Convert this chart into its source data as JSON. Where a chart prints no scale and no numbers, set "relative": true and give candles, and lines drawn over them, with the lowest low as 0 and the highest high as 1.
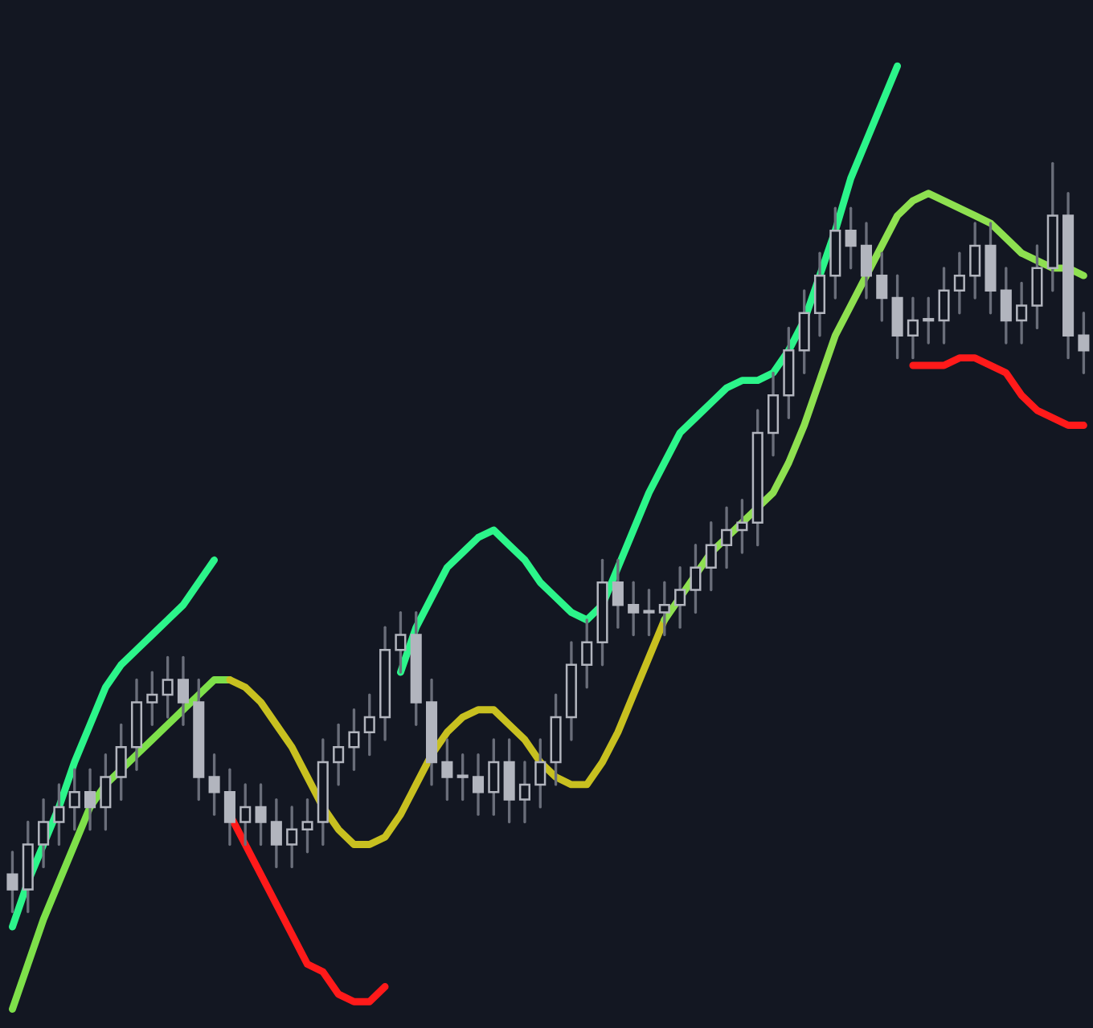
{
  "chart_data": {
    "type": "candlestick",
    "relative": true,
    "categories": [
      null,
      null,
      null,
      null,
      null,
      null,
      null,
      null,
      null,
      null,
      null,
      null,
      null,
      null,
      null,
      null,
      null,
      null,
      null,
      null,
      null,
      null,
      null,
      null,
      null,
      null,
      null,
      null,
      null,
      null,
      null,
      null,
      null,
      null,
      null,
      null,
      null,
      null,
      null,
      null,
      null,
      null,
      null,
      null,
      null,
      null,
      null,
      null,
      null,
      null,
      null,
      null,
      null,
      null,
      null,
      null,
      null,
      null,
      null,
      null,
      null,
      null,
      null,
      null,
      null,
      null,
      null,
      null,
      null,
      null
    ],
    "ohlc": [
      [
        0.05,
        0.08,
        0.0,
        0.03
      ],
      [
        0.03,
        0.12,
        0.0,
        0.09
      ],
      [
        0.09,
        0.15,
        0.06,
        0.12
      ],
      [
        0.12,
        0.17,
        0.09,
        0.14
      ],
      [
        0.14,
        0.19,
        0.11,
        0.16
      ],
      [
        0.16,
        0.19,
        0.11,
        0.14
      ],
      [
        0.14,
        0.21,
        0.11,
        0.18
      ],
      [
        0.18,
        0.25,
        0.15,
        0.22
      ],
      [
        0.22,
        0.31,
        0.19,
        0.28
      ],
      [
        0.28,
        0.32,
        0.25,
        0.29
      ],
      [
        0.29,
        0.34,
        0.26,
        0.31
      ],
      [
        0.31,
        0.34,
        0.25,
        0.28
      ],
      [
        0.28,
        0.31,
        0.15,
        0.18
      ],
      [
        0.18,
        0.21,
        0.13,
        0.16
      ],
      [
        0.16,
        0.19,
        0.09,
        0.12
      ],
      [
        0.12,
        0.17,
        0.09,
        0.14
      ],
      [
        0.14,
        0.17,
        0.09,
        0.12
      ],
      [
        0.12,
        0.15,
        0.06,
        0.09
      ],
      [
        0.09,
        0.14,
        0.06,
        0.11
      ],
      [
        0.11,
        0.15,
        0.08,
        0.12
      ],
      [
        0.12,
        0.23,
        0.09,
        0.2
      ],
      [
        0.2,
        0.25,
        0.17,
        0.22
      ],
      [
        0.22,
        0.27,
        0.19,
        0.24
      ],
      [
        0.24,
        0.29,
        0.21,
        0.26
      ],
      [
        0.26,
        0.38,
        0.23,
        0.35
      ],
      [
        0.35,
        0.4,
        0.32,
        0.37
      ],
      [
        0.37,
        0.4,
        0.25,
        0.28
      ],
      [
        0.28,
        0.31,
        0.17,
        0.2
      ],
      [
        0.2,
        0.23,
        0.15,
        0.18
      ],
      [
        0.18,
        0.21,
        0.15,
        0.18
      ],
      [
        0.18,
        0.21,
        0.13,
        0.16
      ],
      [
        0.16,
        0.23,
        0.13,
        0.2
      ],
      [
        0.2,
        0.23,
        0.12,
        0.15
      ],
      [
        0.15,
        0.2,
        0.12,
        0.17
      ],
      [
        0.17,
        0.23,
        0.14,
        0.2
      ],
      [
        0.2,
        0.29,
        0.17,
        0.26
      ],
      [
        0.26,
        0.36,
        0.23,
        0.33
      ],
      [
        0.33,
        0.39,
        0.3,
        0.36
      ],
      [
        0.36,
        0.47,
        0.33,
        0.44
      ],
      [
        0.44,
        0.47,
        0.38,
        0.41
      ],
      [
        0.41,
        0.44,
        0.37,
        0.4
      ],
      [
        0.4,
        0.43,
        0.37,
        0.4
      ],
      [
        0.4,
        0.44,
        0.37,
        0.41
      ],
      [
        0.41,
        0.46,
        0.38,
        0.43
      ],
      [
        0.43,
        0.49,
        0.4,
        0.46
      ],
      [
        0.46,
        0.52,
        0.43,
        0.49
      ],
      [
        0.49,
        0.54,
        0.46,
        0.51
      ],
      [
        0.51,
        0.55,
        0.48,
        0.52
      ],
      [
        0.52,
        0.67,
        0.49,
        0.64
      ],
      [
        0.64,
        0.72,
        0.61,
        0.69
      ],
      [
        0.69,
        0.78,
        0.66,
        0.75
      ],
      [
        0.75,
        0.83,
        0.72,
        0.8
      ],
      [
        0.8,
        0.88,
        0.77,
        0.85
      ],
      [
        0.85,
        0.94,
        0.82,
        0.91
      ],
      [
        0.91,
        0.94,
        0.86,
        0.89
      ],
      [
        0.89,
        0.92,
        0.82,
        0.85
      ],
      [
        0.85,
        0.88,
        0.79,
        0.82
      ],
      [
        0.82,
        0.85,
        0.74,
        0.77
      ],
      [
        0.77,
        0.82,
        0.74,
        0.79
      ],
      [
        0.79,
        0.82,
        0.76,
        0.79
      ],
      [
        0.79,
        0.86,
        0.76,
        0.83
      ],
      [
        0.83,
        0.88,
        0.8,
        0.85
      ],
      [
        0.85,
        0.92,
        0.82,
        0.89
      ],
      [
        0.89,
        0.92,
        0.8,
        0.83
      ],
      [
        0.83,
        0.86,
        0.76,
        0.79
      ],
      [
        0.79,
        0.84,
        0.76,
        0.81
      ],
      [
        0.81,
        0.89,
        0.78,
        0.86
      ],
      [
        0.86,
        1.0,
        0.83,
        0.93
      ],
      [
        0.93,
        0.96,
        0.74,
        0.77
      ],
      [
        0.77,
        0.8,
        0.72,
        0.75
      ]
    ],
    "series": [
      {
        "type": "line",
        "color": "#2cf58a",
        "values": [
          -0.02,
          0.04,
          0.09,
          0.14,
          0.2,
          0.25,
          0.3,
          0.33,
          0.35,
          0.37,
          0.39,
          0.41,
          0.44,
          0.47,
          null,
          null,
          null,
          null,
          null,
          null,
          null,
          null,
          null,
          null,
          null,
          null,
          null,
          null,
          null,
          null,
          null,
          null,
          null,
          null,
          null,
          null,
          null,
          null,
          null,
          null,
          null,
          null,
          null,
          null,
          null,
          null,
          null,
          null,
          null,
          null,
          null,
          null,
          null,
          null,
          null,
          null,
          null,
          null,
          null,
          null,
          null,
          null,
          null,
          null,
          null,
          null,
          null,
          null,
          null,
          null
        ]
      },
      {
        "type": "line",
        "color": "#2cf58a",
        "values": [
          null,
          null,
          null,
          null,
          null,
          null,
          null,
          null,
          null,
          null,
          null,
          null,
          null,
          null,
          null,
          null,
          null,
          null,
          null,
          null,
          null,
          null,
          null,
          null,
          null,
          0.32,
          0.38,
          0.42,
          0.46,
          0.48,
          0.5,
          0.51,
          0.49,
          0.47,
          0.44,
          0.42,
          0.4,
          0.39,
          0.41,
          0.46,
          0.51,
          0.56,
          0.6,
          0.64,
          0.66,
          0.68,
          0.7,
          0.71,
          0.71,
          0.72,
          0.75,
          0.79,
          0.85,
          0.91,
          0.98,
          1.03,
          1.08,
          1.13,
          null,
          null,
          null,
          null,
          null,
          null,
          null,
          null,
          null,
          null,
          null,
          null
        ]
      },
      {
        "type": "line",
        "color": "#7ee04a",
        "values": [
          -0.13,
          -0.07,
          -0.01,
          0.04,
          0.09,
          0.14,
          0.17,
          0.19,
          0.21,
          0.23,
          0.25,
          0.27,
          0.29,
          0.31,
          0.31,
          null,
          null,
          null,
          null,
          null,
          null,
          null,
          null,
          null,
          null,
          null,
          null,
          null,
          null,
          null,
          null,
          null,
          null,
          null,
          null,
          null,
          null,
          null,
          null,
          null,
          null,
          null,
          null,
          null,
          null,
          null,
          null,
          null,
          null,
          null,
          null,
          null,
          null,
          null,
          null,
          null,
          null,
          null,
          null,
          null,
          null,
          null,
          null,
          null,
          null,
          null,
          null,
          null,
          null,
          null
        ]
      },
      {
        "type": "line",
        "color": "#c8c020",
        "values": [
          null,
          null,
          null,
          null,
          null,
          null,
          null,
          null,
          null,
          null,
          null,
          null,
          null,
          null,
          0.31,
          0.3,
          0.28,
          0.25,
          0.22,
          0.18,
          0.14,
          0.11,
          0.09,
          0.09,
          0.1,
          0.13,
          0.17,
          0.21,
          0.24,
          0.26,
          0.27,
          0.27,
          0.25,
          0.23,
          0.2,
          0.18,
          0.17,
          0.17,
          0.2,
          0.24,
          0.29,
          0.34,
          0.39,
          null,
          null,
          null,
          null,
          null,
          null,
          null,
          null,
          null,
          null,
          null,
          null,
          null,
          null,
          null,
          null,
          null,
          null,
          null,
          null,
          null,
          null,
          null,
          null,
          null,
          null,
          null
        ]
      },
      {
        "type": "line",
        "color": "#8ee050",
        "values": [
          null,
          null,
          null,
          null,
          null,
          null,
          null,
          null,
          null,
          null,
          null,
          null,
          null,
          null,
          null,
          null,
          null,
          null,
          null,
          null,
          null,
          null,
          null,
          null,
          null,
          null,
          null,
          null,
          null,
          null,
          null,
          null,
          null,
          null,
          null,
          null,
          null,
          null,
          null,
          null,
          null,
          null,
          0.39,
          0.42,
          0.45,
          0.48,
          0.5,
          0.52,
          0.54,
          0.56,
          0.6,
          0.65,
          0.71,
          0.77,
          0.81,
          0.85,
          0.89,
          0.93,
          0.95,
          0.96,
          0.95,
          0.94,
          0.93,
          0.92,
          0.9,
          0.88,
          0.87,
          0.86,
          0.86,
          0.85
        ]
      },
      {
        "type": "line",
        "color": "#ff1a1a",
        "values": [
          null,
          null,
          null,
          null,
          null,
          null,
          null,
          null,
          null,
          null,
          null,
          null,
          null,
          null,
          0.13,
          0.09,
          0.05,
          0.01,
          -0.03,
          -0.07,
          -0.08,
          -0.11,
          -0.12,
          -0.12,
          -0.1,
          null,
          null,
          null,
          null,
          null,
          null,
          null,
          null,
          null,
          null,
          null,
          null,
          null,
          null,
          null,
          null,
          null,
          null,
          null,
          null,
          null,
          null,
          null,
          null,
          null,
          null,
          null,
          null,
          null,
          null,
          null,
          null,
          null,
          null,
          null,
          null,
          null,
          null,
          null,
          null,
          null,
          null,
          null,
          null,
          null
        ]
      },
      {
        "type": "line",
        "color": "#ff1a1a",
        "values": [
          null,
          null,
          null,
          null,
          null,
          null,
          null,
          null,
          null,
          null,
          null,
          null,
          null,
          null,
          null,
          null,
          null,
          null,
          null,
          null,
          null,
          null,
          null,
          null,
          null,
          null,
          null,
          null,
          null,
          null,
          null,
          null,
          null,
          null,
          null,
          null,
          null,
          null,
          null,
          null,
          null,
          null,
          null,
          null,
          null,
          null,
          null,
          null,
          null,
          null,
          null,
          null,
          null,
          null,
          null,
          null,
          null,
          null,
          0.73,
          0.73,
          0.73,
          0.74,
          0.74,
          0.73,
          0.72,
          0.69,
          0.67,
          0.66,
          0.65,
          0.65
        ]
      }
    ]
  }
}
